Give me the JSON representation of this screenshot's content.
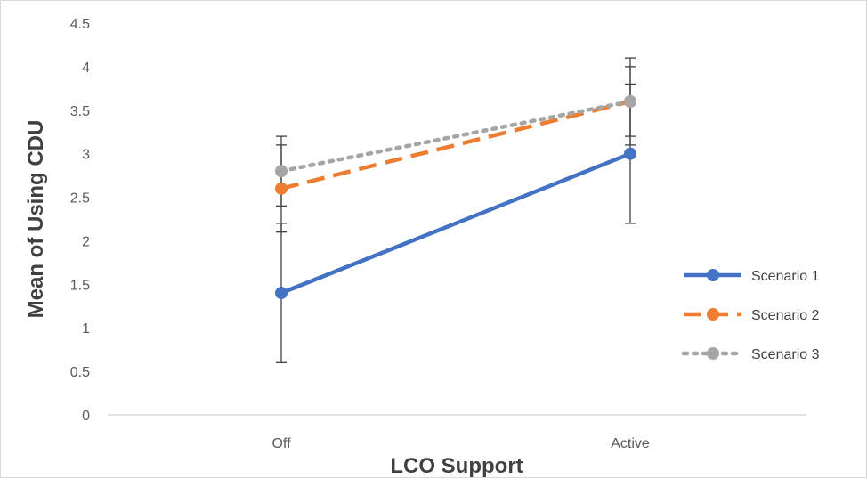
{
  "chart_data": {
    "type": "line",
    "categories": [
      "Off",
      "Active"
    ],
    "xlabel": "LCO Support",
    "ylabel": "Mean of Using CDU",
    "ylim": [
      0,
      4.5
    ],
    "ytick_step": 0.5,
    "ytick_labels": [
      "0",
      "0.5",
      "1",
      "1.5",
      "2",
      "2.5",
      "3",
      "3.5",
      "4",
      "4.5"
    ],
    "grid": false,
    "legend_position": "right",
    "series": [
      {
        "name": "Scenario 1",
        "values": [
          1.4,
          3.0
        ],
        "error_low": [
          0.6,
          2.2
        ],
        "error_high": [
          2.2,
          3.8
        ],
        "color": "#4472C4",
        "style": "solid"
      },
      {
        "name": "Scenario 2",
        "values": [
          2.6,
          3.6
        ],
        "error_low": [
          2.1,
          3.1
        ],
        "error_high": [
          3.1,
          4.1
        ],
        "color": "#ED7D31",
        "style": "dashed"
      },
      {
        "name": "Scenario 3",
        "values": [
          2.8,
          3.6
        ],
        "error_low": [
          2.4,
          3.2
        ],
        "error_high": [
          3.2,
          4.0
        ],
        "color": "#A5A5A5",
        "style": "dotted"
      }
    ]
  }
}
